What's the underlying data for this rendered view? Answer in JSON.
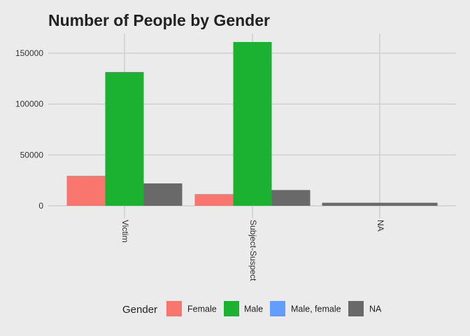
{
  "chart_data": {
    "type": "bar",
    "title": "Number of People by Gender",
    "xlabel": "",
    "ylabel": "",
    "categories": [
      "Victim",
      "Subject-Suspect",
      "NA"
    ],
    "series": [
      {
        "name": "Female",
        "color": "#f8766d",
        "values": [
          29500,
          11500,
          null
        ]
      },
      {
        "name": "Male",
        "color": "#1bb232",
        "values": [
          131500,
          161000,
          null
        ]
      },
      {
        "name": "Male, female",
        "color": "#619cff",
        "values": [
          0,
          null,
          null
        ]
      },
      {
        "name": "NA",
        "color": "#696969",
        "values": [
          22000,
          15500,
          3000
        ]
      }
    ],
    "yticks": [
      0,
      50000,
      100000,
      150000
    ],
    "ylim": [
      0,
      165000
    ],
    "grid": true,
    "legend": {
      "title": "Gender",
      "position": "bottom"
    },
    "bar_groups": [
      [
        "Female",
        "Male",
        "NA"
      ],
      [
        "Female",
        "Male",
        "NA"
      ],
      [
        "NA"
      ]
    ]
  }
}
